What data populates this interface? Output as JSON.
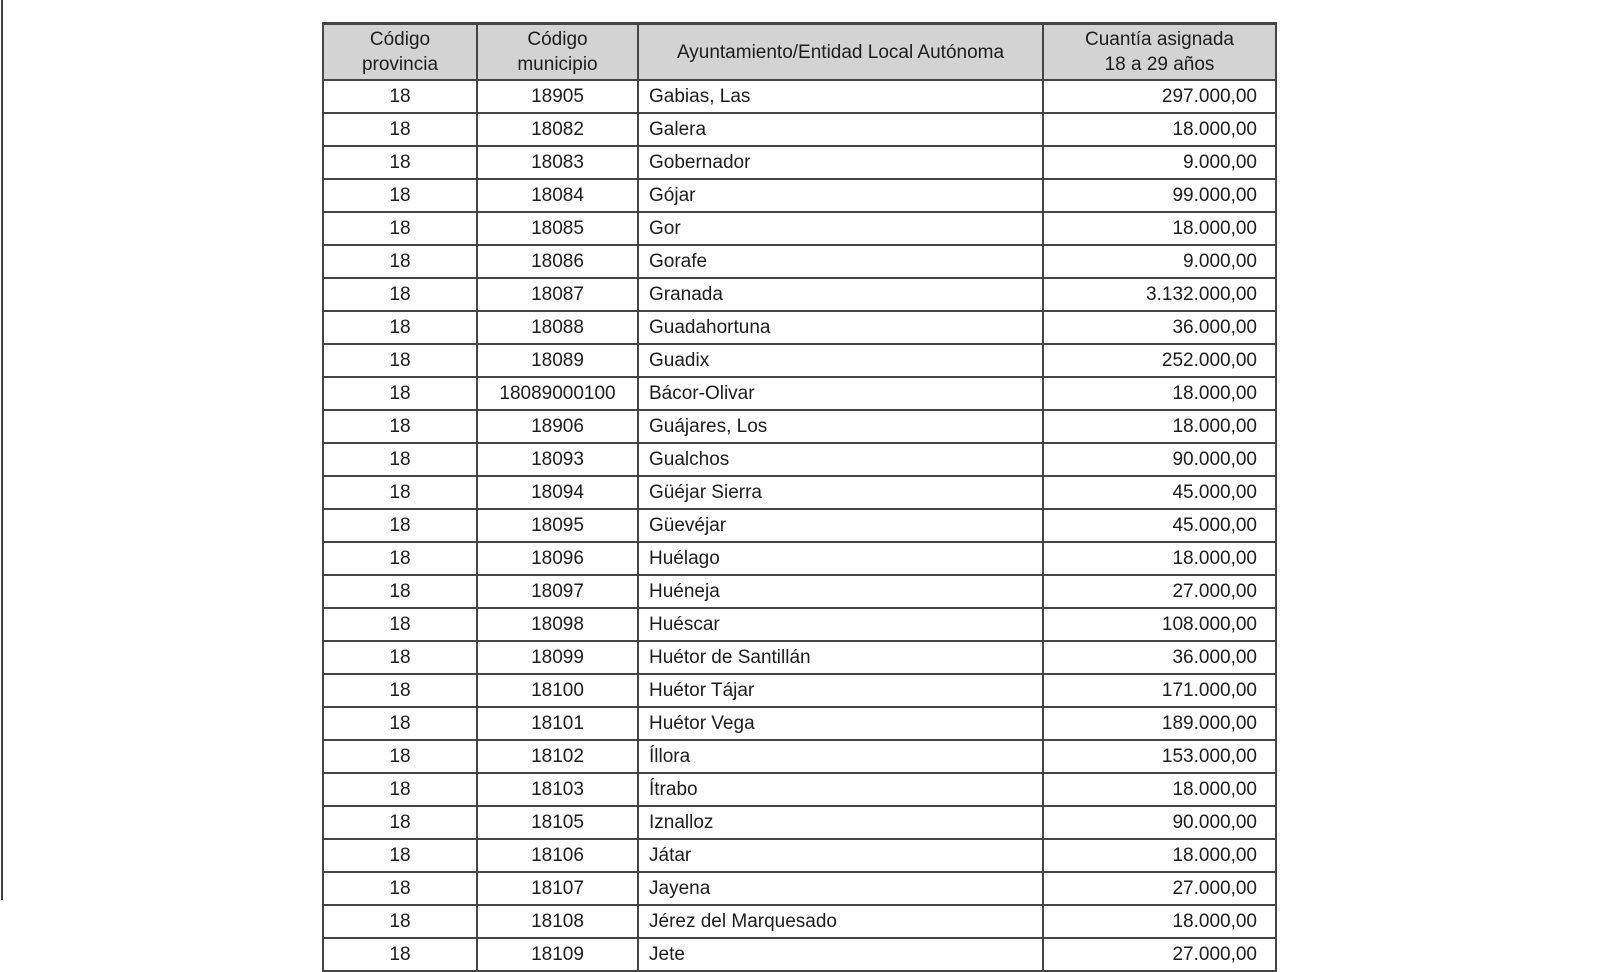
{
  "page": {
    "kind": "official-document-table-page"
  },
  "colors": {
    "header_background": "#d3d3d3",
    "table_border": "#454545",
    "text": "#1d1d1d",
    "page_edge_line": "#3d3d3d"
  },
  "table": {
    "headers": [
      {
        "label": "Código\nprovincia"
      },
      {
        "label": "Código\nmunicipio"
      },
      {
        "label": "Ayuntamiento/Entidad Local Autónoma"
      },
      {
        "label": "Cuantía asignada\n18 a 29 años"
      }
    ],
    "rows": [
      [
        "18",
        "18905",
        "Gabias, Las",
        "297.000,00"
      ],
      [
        "18",
        "18082",
        "Galera",
        "18.000,00"
      ],
      [
        "18",
        "18083",
        "Gobernador",
        "9.000,00"
      ],
      [
        "18",
        "18084",
        "Gójar",
        "99.000,00"
      ],
      [
        "18",
        "18085",
        "Gor",
        "18.000,00"
      ],
      [
        "18",
        "18086",
        "Gorafe",
        "9.000,00"
      ],
      [
        "18",
        "18087",
        "Granada",
        "3.132.000,00"
      ],
      [
        "18",
        "18088",
        "Guadahortuna",
        "36.000,00"
      ],
      [
        "18",
        "18089",
        "Guadix",
        "252.000,00"
      ],
      [
        "18",
        "18089000100",
        "Bácor-Olivar",
        "18.000,00"
      ],
      [
        "18",
        "18906",
        "Guájares, Los",
        "18.000,00"
      ],
      [
        "18",
        "18093",
        "Gualchos",
        "90.000,00"
      ],
      [
        "18",
        "18094",
        "Güéjar Sierra",
        "45.000,00"
      ],
      [
        "18",
        "18095",
        "Güevéjar",
        "45.000,00"
      ],
      [
        "18",
        "18096",
        "Huélago",
        "18.000,00"
      ],
      [
        "18",
        "18097",
        "Huéneja",
        "27.000,00"
      ],
      [
        "18",
        "18098",
        "Huéscar",
        "108.000,00"
      ],
      [
        "18",
        "18099",
        "Huétor de Santillán",
        "36.000,00"
      ],
      [
        "18",
        "18100",
        "Huétor Tájar",
        "171.000,00"
      ],
      [
        "18",
        "18101",
        "Huétor Vega",
        "189.000,00"
      ],
      [
        "18",
        "18102",
        "Íllora",
        "153.000,00"
      ],
      [
        "18",
        "18103",
        "Ítrabo",
        "18.000,00"
      ],
      [
        "18",
        "18105",
        "Iznalloz",
        "90.000,00"
      ],
      [
        "18",
        "18106",
        "Játar",
        "18.000,00"
      ],
      [
        "18",
        "18107",
        "Jayena",
        "27.000,00"
      ],
      [
        "18",
        "18108",
        "Jérez del Marquesado",
        "18.000,00"
      ],
      [
        "18",
        "18109",
        "Jete",
        "27.000,00"
      ]
    ]
  }
}
